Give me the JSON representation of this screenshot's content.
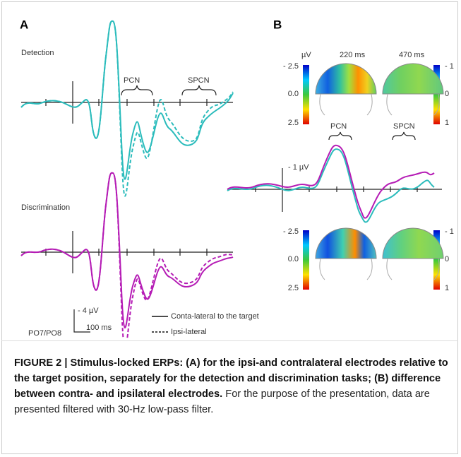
{
  "panels": [
    {
      "label": "A",
      "conditions": [
        "Detection",
        "Discrimination"
      ],
      "components": [
        "PCN",
        "SPCN"
      ],
      "scale": {
        "amplitude": "- 4 µV",
        "time": "100 ms",
        "electrodes": "PO7/PO8"
      },
      "legend": [
        "Conta-lateral to the target",
        "Ipsi-lateral"
      ]
    },
    {
      "label": "B",
      "times": [
        "220 ms",
        "470 ms"
      ],
      "unit": "µV",
      "left_scale": [
        "- 2.5",
        "0.0",
        "2.5"
      ],
      "right_scale": [
        "- 1",
        "0",
        "1"
      ],
      "components": [
        "PCN",
        "SPCN"
      ],
      "amplitude": "- 1 µV"
    }
  ],
  "caption": {
    "bold": "FIGURE 2 | Stimulus-locked ERPs: (A) for the ipsi-and contralateral electrodes relative to the target position, separately for the detection and discrimination tasks; (B) difference between contra- and ipsilateral electrodes.",
    "text": "For the purpose of the presentation, data are presented filtered with 30-Hz low-pass filter."
  }
}
